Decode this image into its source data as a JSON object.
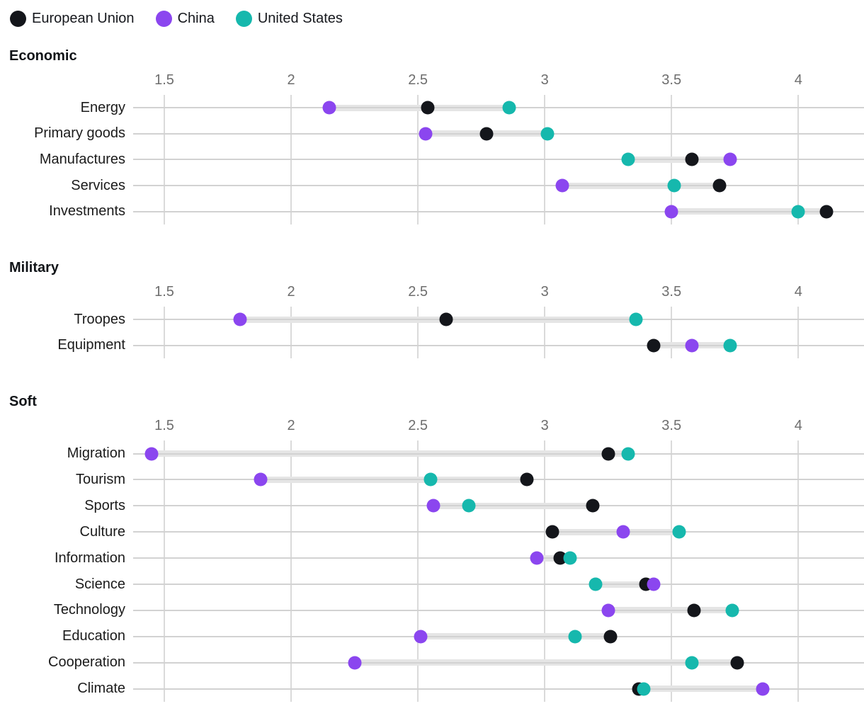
{
  "legend": {
    "items": [
      {
        "key": "eu",
        "label": "European Union",
        "color": "#14161b"
      },
      {
        "key": "cn",
        "label": "China",
        "color": "#8b46ef"
      },
      {
        "key": "us",
        "label": "United States",
        "color": "#16b8ad"
      }
    ]
  },
  "chart_data": {
    "type": "dumbbell-dot-plot",
    "legend_position": "top-left",
    "grid": true,
    "xlim": [
      1.377,
      4.259
    ],
    "ticks": [
      1.5,
      2,
      2.5,
      3,
      3.5,
      4
    ],
    "tick_labels": [
      "1.5",
      "2",
      "2.5",
      "3",
      "3.5",
      "4"
    ],
    "series_keys": [
      "eu",
      "cn",
      "us"
    ],
    "series_names": {
      "eu": "European Union",
      "cn": "China",
      "us": "United States"
    },
    "sections": [
      {
        "title": "Economic",
        "rows": [
          {
            "label": "Energy",
            "values": {
              "eu": 2.54,
              "cn": 2.15,
              "us": 2.86
            }
          },
          {
            "label": "Primary goods",
            "values": {
              "eu": 2.77,
              "cn": 2.53,
              "us": 3.01
            }
          },
          {
            "label": "Manufactures",
            "values": {
              "eu": 3.58,
              "cn": 3.73,
              "us": 3.33
            }
          },
          {
            "label": "Services",
            "values": {
              "eu": 3.69,
              "cn": 3.07,
              "us": 3.51
            }
          },
          {
            "label": "Investments",
            "values": {
              "eu": 4.11,
              "cn": 3.5,
              "us": 4.0
            }
          }
        ]
      },
      {
        "title": "Military",
        "rows": [
          {
            "label": "Troopes",
            "values": {
              "eu": 2.61,
              "cn": 1.8,
              "us": 3.36
            }
          },
          {
            "label": "Equipment",
            "values": {
              "eu": 3.43,
              "cn": 3.58,
              "us": 3.73
            }
          }
        ]
      },
      {
        "title": "Soft",
        "rows": [
          {
            "label": "Migration",
            "values": {
              "eu": 3.25,
              "cn": 1.45,
              "us": 3.33
            }
          },
          {
            "label": "Tourism",
            "values": {
              "eu": 2.93,
              "cn": 1.88,
              "us": 2.55
            }
          },
          {
            "label": "Sports",
            "values": {
              "eu": 3.19,
              "cn": 2.56,
              "us": 2.7
            }
          },
          {
            "label": "Culture",
            "values": {
              "eu": 3.03,
              "cn": 3.31,
              "us": 3.53
            }
          },
          {
            "label": "Information",
            "values": {
              "eu": 3.06,
              "cn": 2.97,
              "us": 3.1
            }
          },
          {
            "label": "Science",
            "values": {
              "eu": 3.4,
              "cn": 3.43,
              "us": 3.2
            }
          },
          {
            "label": "Technology",
            "values": {
              "eu": 3.59,
              "cn": 3.25,
              "us": 3.74
            }
          },
          {
            "label": "Education",
            "values": {
              "eu": 3.26,
              "cn": 2.51,
              "us": 3.12
            }
          },
          {
            "label": "Cooperation",
            "values": {
              "eu": 3.76,
              "cn": 2.25,
              "us": 3.58
            }
          },
          {
            "label": "Climate",
            "values": {
              "eu": 3.37,
              "cn": 3.86,
              "us": 3.39
            }
          }
        ]
      }
    ],
    "colors": {
      "gridline": "#dadada",
      "row_line": "#d2d2d2",
      "connector": "#e5e5e5",
      "tick_text": "#6e6e6e"
    }
  }
}
